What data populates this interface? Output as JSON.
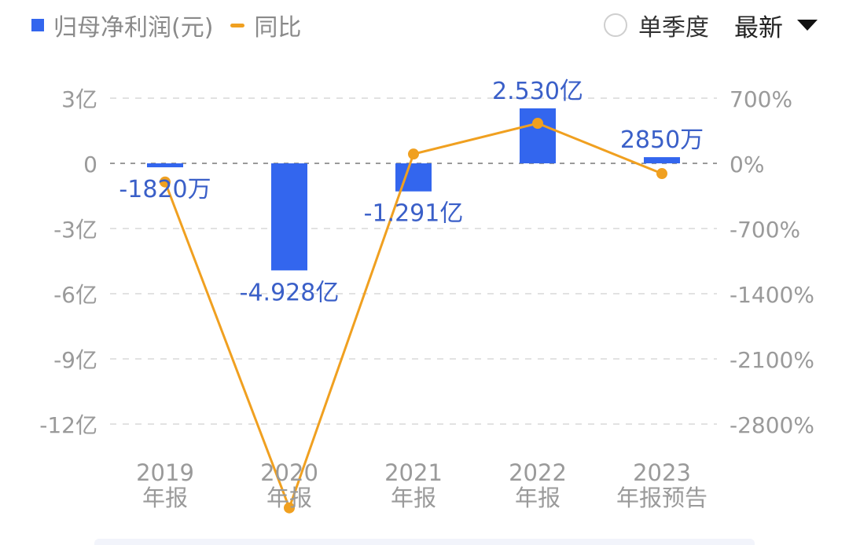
{
  "legend": {
    "bar_label": "归母净利润(元)",
    "line_label": "同比"
  },
  "controls": {
    "quarterly_label": "单季度",
    "dropdown_value": "最新"
  },
  "colors": {
    "bar": "#3366ee",
    "line": "#f0a020",
    "label": "#3a5fc8",
    "axis_text": "#9a9a9a",
    "grid": "#e2e2e2",
    "zero": "#9a9a9a"
  },
  "chart_data": {
    "type": "bar",
    "categories": [
      [
        "2019",
        "年报"
      ],
      [
        "2020",
        "年报"
      ],
      [
        "2021",
        "年报"
      ],
      [
        "2022",
        "年报"
      ],
      [
        "2023",
        "年报预告"
      ]
    ],
    "series": [
      {
        "type": "bar",
        "axis": "left",
        "values": [
          -0.182,
          -4.928,
          -1.291,
          2.53,
          0.285
        ],
        "labels": [
          "-1820万",
          "-4.928亿",
          "-1.291亿",
          "2.530亿",
          "2850万"
        ]
      },
      {
        "type": "line",
        "axis": "right",
        "values": [
          -200,
          -3700,
          100,
          430,
          -110
        ]
      }
    ],
    "y_left": {
      "ticks": [
        3,
        0,
        -3,
        -6,
        -9,
        -12
      ],
      "tick_labels": [
        "3亿",
        "0",
        "-3亿",
        "-6亿",
        "-9亿",
        "-12亿"
      ],
      "ylim": [
        -12,
        3
      ]
    },
    "y_right": {
      "ticks": [
        700,
        0,
        -700,
        -1400,
        -2100,
        -2800
      ],
      "tick_labels": [
        "700%",
        "0%",
        "-700%",
        "-1400%",
        "-2100%",
        "-2800%"
      ],
      "ylim": [
        -2800,
        700
      ]
    },
    "grid": true
  }
}
